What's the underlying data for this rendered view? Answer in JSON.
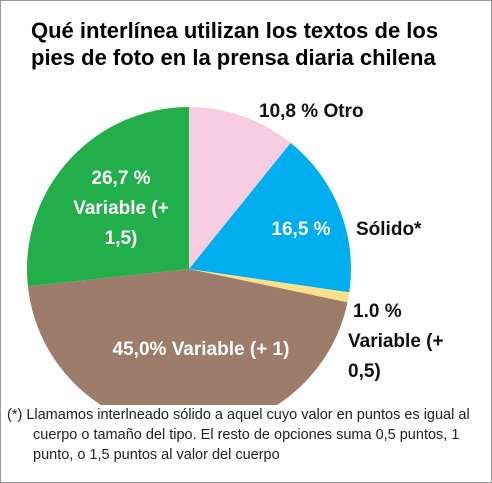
{
  "chart_data": {
    "type": "pie",
    "title": "Qué interlínea utilizan los textos de los pies de foto en la prensa diaria chilena",
    "categories": [
      "Otro",
      "Sólido*",
      "Variable (+ 0,5)",
      "Variable (+ 1)",
      "Variable (+ 1,5)"
    ],
    "values": [
      10.8,
      16.5,
      1.0,
      45.0,
      26.7
    ],
    "value_labels": [
      "10,8 %",
      "16,5 %",
      "1.0 %",
      "45,0%",
      "26,7 %"
    ],
    "colors": [
      "#f8cde1",
      "#00adee",
      "#fde08c",
      "#9d7c6b",
      "#22ae4b"
    ],
    "note": "(*) Llamamos interlneado sólido a aquel cuyo valor en puntos es igual al cuerpo o tamaño del tipo. El resto de opciones suma 0,5 puntos, 1 punto, o 1,5 puntos al valor del cuerpo"
  }
}
